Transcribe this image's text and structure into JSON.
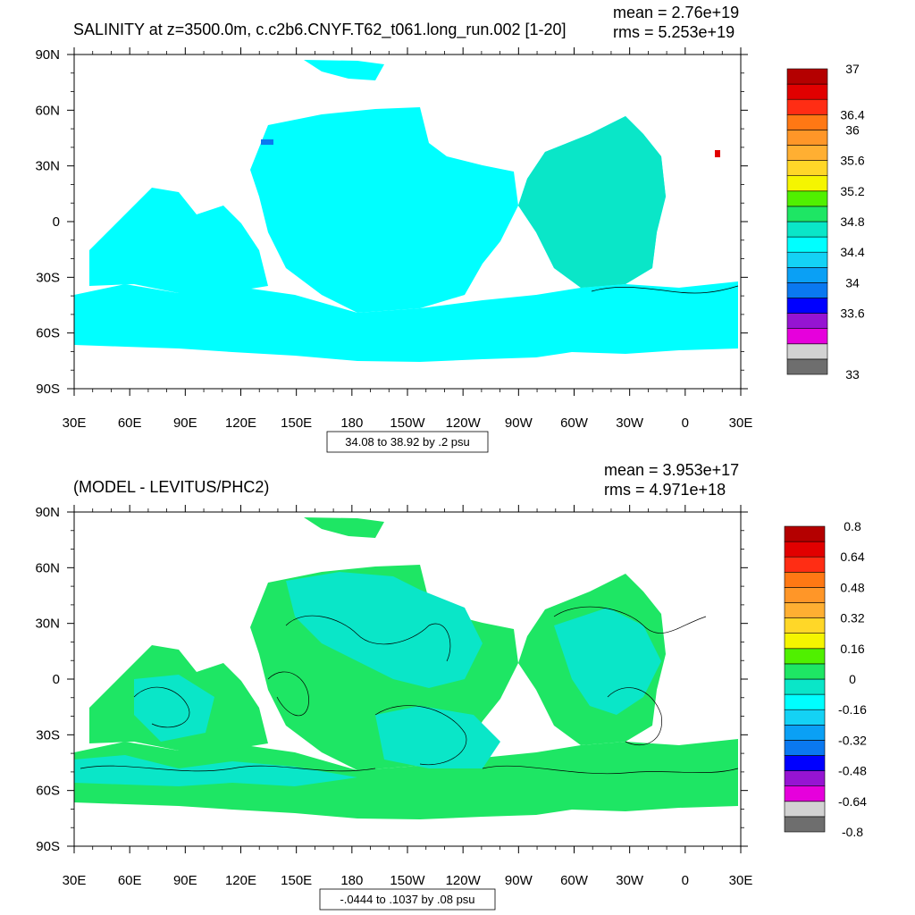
{
  "chart_data": [
    {
      "type": "heatmap",
      "title": "SALINITY at z=3500.0m, c.c2b6.CNYF.T62_t061.long_run.002 [1-20]",
      "stats": {
        "mean": "mean = 2.76e+19",
        "rms": "rms = 5.253e+19"
      },
      "x_ticks": [
        "30E",
        "60E",
        "90E",
        "120E",
        "150E",
        "180",
        "150W",
        "120W",
        "90W",
        "60W",
        "30W",
        "0",
        "30E"
      ],
      "y_ticks": [
        "90N",
        "60N",
        "30N",
        "0",
        "30S",
        "60S",
        "90S"
      ],
      "xlim": [
        30,
        390
      ],
      "ylim": [
        -90,
        90
      ],
      "contour_info": "34.08 to 38.92 by .2 psu",
      "colorbar": {
        "colors": [
          "#6e6e6e",
          "#d2d2d2",
          "#e600dc",
          "#9614d2",
          "#0000ff",
          "#0a78f0",
          "#0aa0f5",
          "#14d2f5",
          "#00ffff",
          "#0ae6c8",
          "#1ee664",
          "#50f000",
          "#f5f500",
          "#ffd728",
          "#ffaf32",
          "#ff9628",
          "#ff7814",
          "#ff2d14",
          "#e10000",
          "#b40000"
        ],
        "labels": [
          "33",
          "33.6",
          "34",
          "34.4",
          "34.8",
          "35.2",
          "35.6",
          "36",
          "36.4",
          "37"
        ],
        "label_slots": [
          0,
          4,
          6,
          8,
          10,
          12,
          14,
          16,
          17,
          20
        ]
      },
      "field": {
        "colors": [
          "#00ffff",
          "#0ae6c8",
          "#0a78f0",
          "#e10000"
        ]
      }
    },
    {
      "type": "heatmap",
      "title": "(MODEL - LEVITUS/PHC2)",
      "stats": {
        "mean": "mean = 3.953e+17",
        "rms": "rms = 4.971e+18"
      },
      "x_ticks": [
        "30E",
        "60E",
        "90E",
        "120E",
        "150E",
        "180",
        "150W",
        "120W",
        "90W",
        "60W",
        "30W",
        "0",
        "30E"
      ],
      "y_ticks": [
        "90N",
        "60N",
        "30N",
        "0",
        "30S",
        "60S",
        "90S"
      ],
      "xlim": [
        30,
        390
      ],
      "ylim": [
        -90,
        90
      ],
      "contour_info": "-.0444 to .1037 by .08 psu",
      "colorbar": {
        "colors": [
          "#6e6e6e",
          "#d2d2d2",
          "#e600dc",
          "#9614d2",
          "#0000ff",
          "#0a78f0",
          "#0aa0f5",
          "#14d2f5",
          "#00ffff",
          "#0ae6c8",
          "#1ee664",
          "#50f000",
          "#f5f500",
          "#ffd728",
          "#ffaf32",
          "#ff9628",
          "#ff7814",
          "#ff2d14",
          "#e10000",
          "#b40000"
        ],
        "labels": [
          "-0.8",
          "-0.64",
          "-0.48",
          "-0.32",
          "-0.16",
          "0",
          "0.16",
          "0.32",
          "0.48",
          "0.64",
          "0.8"
        ],
        "label_slots": [
          0,
          2,
          4,
          6,
          8,
          10,
          12,
          14,
          16,
          18,
          20
        ]
      },
      "field": {
        "colors": [
          "#1ee664",
          "#0ae6c8",
          "#0ae6c8"
        ]
      }
    }
  ]
}
